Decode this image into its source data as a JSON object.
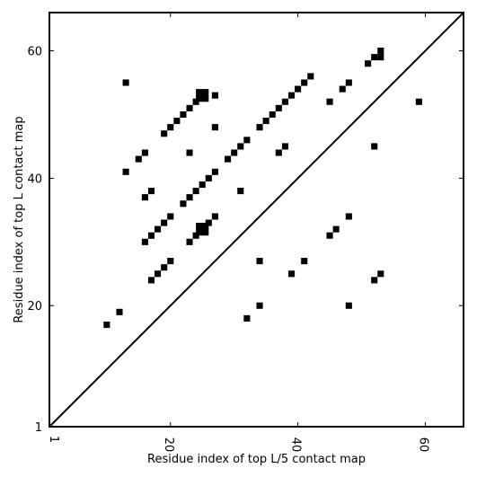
{
  "chart_data": {
    "type": "scatter",
    "xlabel": "Residue index of top L/5 contact map",
    "ylabel": "Residue index of top L contact map",
    "xlim": [
      1,
      66
    ],
    "ylim": [
      1,
      66
    ],
    "x_ticks": [
      1,
      20,
      40,
      60
    ],
    "y_ticks": [
      1,
      20,
      40,
      60
    ],
    "grid": false,
    "diagonal_line": true,
    "marker": "square",
    "color": "#000000",
    "upper_left_points": [
      [
        10,
        17
      ],
      [
        12,
        19
      ],
      [
        13,
        55
      ],
      [
        13,
        41
      ],
      [
        15,
        43
      ],
      [
        16,
        44
      ],
      [
        16,
        37
      ],
      [
        17,
        38
      ],
      [
        16,
        30
      ],
      [
        17,
        31
      ],
      [
        18,
        32
      ],
      [
        19,
        33
      ],
      [
        20,
        34
      ],
      [
        17,
        24
      ],
      [
        18,
        25
      ],
      [
        19,
        26
      ],
      [
        20,
        27
      ],
      [
        19,
        47
      ],
      [
        20,
        48
      ],
      [
        21,
        49
      ],
      [
        22,
        50
      ],
      [
        23,
        51
      ],
      [
        24,
        52
      ],
      [
        25,
        53
      ],
      [
        27,
        53
      ],
      [
        23,
        44
      ],
      [
        22,
        36
      ],
      [
        23,
        37
      ],
      [
        24,
        38
      ],
      [
        25,
        39
      ],
      [
        26,
        40
      ],
      [
        27,
        41
      ],
      [
        27,
        48
      ],
      [
        23,
        30
      ],
      [
        24,
        31
      ],
      [
        25,
        32
      ],
      [
        26,
        33
      ],
      [
        27,
        34
      ],
      [
        29,
        43
      ],
      [
        30,
        44
      ],
      [
        31,
        45
      ],
      [
        32,
        46
      ],
      [
        31,
        38
      ],
      [
        34,
        48
      ],
      [
        35,
        49
      ],
      [
        36,
        50
      ],
      [
        37,
        51
      ],
      [
        38,
        52
      ],
      [
        39,
        53
      ],
      [
        40,
        54
      ],
      [
        41,
        55
      ],
      [
        42,
        56
      ],
      [
        37,
        44
      ],
      [
        38,
        45
      ],
      [
        45,
        52
      ],
      [
        47,
        54
      ],
      [
        48,
        55
      ],
      [
        51,
        58
      ],
      [
        52,
        59
      ],
      [
        53,
        60
      ],
      [
        53,
        59
      ],
      [
        59,
        52
      ],
      [
        52,
        45
      ],
      [
        48,
        34
      ],
      [
        45,
        31
      ],
      [
        46,
        32
      ],
      [
        41,
        27
      ],
      [
        39,
        25
      ],
      [
        34,
        27
      ],
      [
        34,
        20
      ],
      [
        32,
        18
      ],
      [
        48,
        20
      ],
      [
        52,
        24
      ],
      [
        53,
        25
      ]
    ],
    "large_points": [
      [
        25,
        53
      ],
      [
        25,
        32
      ]
    ]
  }
}
